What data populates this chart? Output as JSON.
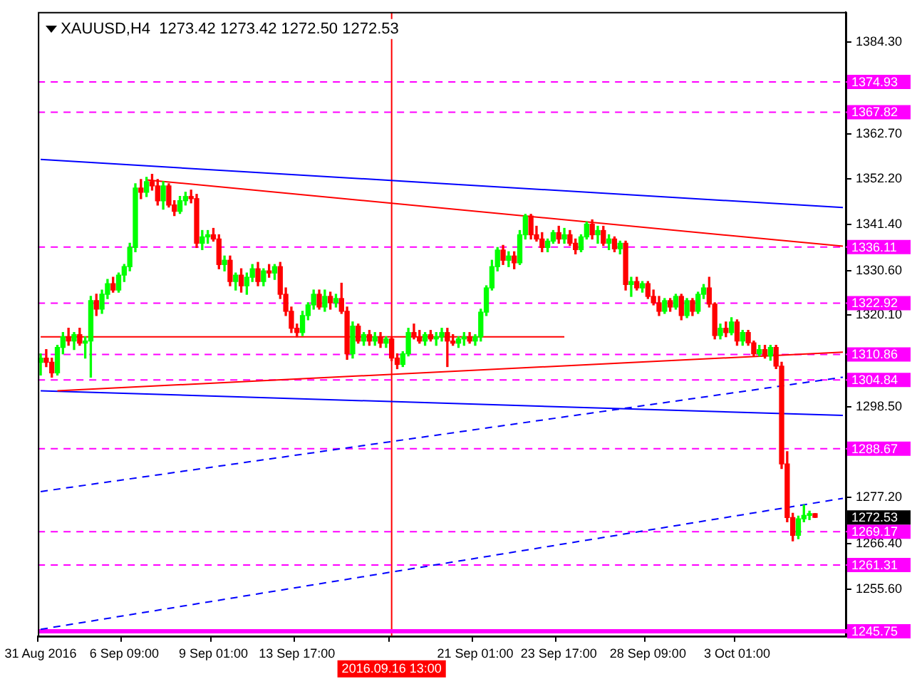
{
  "chart_data": {
    "type": "candlestick",
    "title": "XAUUSD,H4  1273.42 1273.42 1272.50 1272.53",
    "categories": [
      "31 Aug 2016",
      null,
      null,
      null,
      null,
      null,
      null,
      null,
      null,
      null,
      null,
      null,
      null,
      null,
      null,
      "6 Sep 09:00",
      null,
      null,
      null,
      null,
      null,
      null,
      null,
      null,
      null,
      null,
      null,
      null,
      null,
      null,
      null,
      "9 Sep 01:00",
      null,
      null,
      null,
      null,
      null,
      null,
      null,
      null,
      null,
      null,
      null,
      null,
      null,
      null,
      "13 Sep 17:00",
      null,
      null,
      null,
      null,
      null,
      null,
      null,
      null,
      null,
      null,
      null,
      null,
      null,
      null,
      null,
      null,
      "2016.09.16 13:00",
      null,
      null,
      null,
      null,
      null,
      null,
      null,
      null,
      null,
      null,
      null,
      null,
      null,
      null,
      "21 Sep 01:00",
      null,
      null,
      null,
      null,
      null,
      null,
      null,
      null,
      null,
      null,
      null,
      null,
      null,
      null,
      "23 Sep 17:00",
      null,
      null,
      null,
      null,
      null,
      null,
      null,
      null,
      null,
      null,
      null,
      null,
      null,
      null,
      null,
      "28 Sep 09:00",
      null,
      null,
      null,
      null,
      null,
      null,
      null,
      null,
      null,
      null,
      null,
      null,
      null,
      null,
      null,
      "3 Oct 01:00",
      null,
      null,
      null,
      null,
      null,
      null,
      null,
      null,
      null,
      null,
      null,
      null,
      null,
      null,
      null,
      null,
      null,
      null,
      null
    ],
    "ohlc": [
      [
        1309,
        1311,
        1306,
        1310
      ],
      [
        1310,
        1312,
        1308,
        1309
      ],
      [
        1309,
        1310,
        1305.5,
        1306.5
      ],
      [
        1306.5,
        1313,
        1306,
        1312.5
      ],
      [
        1312.5,
        1316,
        1311,
        1315
      ],
      [
        1315,
        1317,
        1313,
        1314
      ],
      [
        1314,
        1316,
        1312,
        1315.5
      ],
      [
        1315.5,
        1317,
        1313,
        1313.5
      ],
      [
        1313.5,
        1315,
        1310,
        1314
      ],
      [
        1314,
        1324.5,
        1305.5,
        1323.5
      ],
      [
        1323.5,
        1325,
        1320,
        1321.5
      ],
      [
        1321.5,
        1326,
        1320.5,
        1325
      ],
      [
        1325,
        1328.5,
        1324,
        1327.5
      ],
      [
        1327.5,
        1329,
        1325.5,
        1326
      ],
      [
        1326,
        1330,
        1325.5,
        1329.5
      ],
      [
        1329.5,
        1332,
        1328,
        1331.5
      ],
      [
        1331.5,
        1337,
        1330.5,
        1336
      ],
      [
        1336,
        1351,
        1335,
        1350
      ],
      [
        1350,
        1352,
        1347.5,
        1349
      ],
      [
        1349,
        1352.5,
        1348,
        1351.5
      ],
      [
        1351.5,
        1353.2,
        1349.5,
        1350.5
      ],
      [
        1350.5,
        1352,
        1346,
        1347
      ],
      [
        1347,
        1351.5,
        1345,
        1350.5
      ],
      [
        1350.5,
        1351,
        1345.5,
        1346
      ],
      [
        1346,
        1347,
        1343.5,
        1344.5
      ],
      [
        1344.5,
        1348,
        1344,
        1347
      ],
      [
        1347,
        1349,
        1346,
        1348
      ],
      [
        1348,
        1349.5,
        1346.5,
        1347.5
      ],
      [
        1347.5,
        1348.5,
        1336,
        1337
      ],
      [
        1337,
        1340,
        1335.5,
        1338.5
      ],
      [
        1338.5,
        1340,
        1337,
        1339
      ],
      [
        1339,
        1340.5,
        1337.5,
        1338
      ],
      [
        1338,
        1339,
        1331,
        1332
      ],
      [
        1332,
        1334,
        1330.5,
        1333
      ],
      [
        1333,
        1334,
        1327,
        1328
      ],
      [
        1328,
        1330,
        1326,
        1329.5
      ],
      [
        1329.5,
        1331,
        1325.5,
        1327
      ],
      [
        1327,
        1330,
        1325,
        1329
      ],
      [
        1329,
        1332,
        1328,
        1331
      ],
      [
        1331,
        1332.5,
        1327,
        1328
      ],
      [
        1328,
        1331,
        1327,
        1330.5
      ],
      [
        1330.5,
        1332,
        1329,
        1330
      ],
      [
        1330,
        1332,
        1328.5,
        1331.5
      ],
      [
        1331.5,
        1332.5,
        1324,
        1325
      ],
      [
        1325,
        1326.5,
        1320,
        1321
      ],
      [
        1321,
        1322,
        1316,
        1317
      ],
      [
        1317,
        1318,
        1315,
        1316
      ],
      [
        1316,
        1321,
        1315.3,
        1320
      ],
      [
        1320,
        1323,
        1319,
        1322.5
      ],
      [
        1322.5,
        1326,
        1321.5,
        1325
      ],
      [
        1325,
        1326,
        1321.5,
        1322
      ],
      [
        1322,
        1326,
        1321,
        1324.5
      ],
      [
        1324.5,
        1325.5,
        1321.5,
        1323
      ],
      [
        1323,
        1325,
        1322,
        1324
      ],
      [
        1324,
        1327.6,
        1320.5,
        1321
      ],
      [
        1321,
        1322,
        1309.7,
        1311
      ],
      [
        1311,
        1318.5,
        1310,
        1317.5
      ],
      [
        1317.5,
        1318,
        1313.5,
        1314
      ],
      [
        1314,
        1316,
        1313,
        1315.5
      ],
      [
        1315.5,
        1316.5,
        1313,
        1314
      ],
      [
        1314,
        1316,
        1313,
        1315
      ],
      [
        1315,
        1316,
        1312.5,
        1313.5
      ],
      [
        1313.5,
        1315,
        1312.5,
        1314.5
      ],
      [
        1314.5,
        1315,
        1309.4,
        1310
      ],
      [
        1310,
        1311,
        1307.5,
        1308.5
      ],
      [
        1308.5,
        1311.5,
        1308,
        1311
      ],
      [
        1311,
        1317,
        1310.5,
        1316
      ],
      [
        1316,
        1318,
        1314.5,
        1315
      ],
      [
        1315,
        1316.5,
        1313.5,
        1314
      ],
      [
        1314,
        1316,
        1313,
        1315.5
      ],
      [
        1315.5,
        1316.5,
        1314,
        1314.5
      ],
      [
        1314.5,
        1316,
        1313,
        1315
      ],
      [
        1315,
        1317,
        1314,
        1316
      ],
      [
        1316,
        1317,
        1308,
        1314
      ],
      [
        1314,
        1315.5,
        1313,
        1313.5
      ],
      [
        1313.5,
        1315,
        1312.5,
        1314.5
      ],
      [
        1314.5,
        1316,
        1313,
        1315
      ],
      [
        1315,
        1316,
        1313.5,
        1314
      ],
      [
        1314,
        1315.5,
        1313,
        1315
      ],
      [
        1315,
        1321.5,
        1314,
        1320.8
      ],
      [
        1320.8,
        1327,
        1320,
        1326.5
      ],
      [
        1326.5,
        1333,
        1326,
        1331.5
      ],
      [
        1331.5,
        1336,
        1330.5,
        1335.4
      ],
      [
        1335.4,
        1336.5,
        1332,
        1333
      ],
      [
        1333,
        1335,
        1331.5,
        1334
      ],
      [
        1334,
        1335,
        1331,
        1332.4
      ],
      [
        1332.4,
        1340,
        1332,
        1339
      ],
      [
        1339,
        1343.8,
        1338,
        1343.4
      ],
      [
        1343.4,
        1343.8,
        1338,
        1339
      ],
      [
        1339,
        1341,
        1337.5,
        1338
      ],
      [
        1338,
        1339.5,
        1335,
        1336
      ],
      [
        1336,
        1338,
        1335,
        1337.5
      ],
      [
        1337.5,
        1340,
        1337,
        1339.5
      ],
      [
        1339.5,
        1341,
        1337,
        1338
      ],
      [
        1338,
        1340.5,
        1337,
        1339
      ],
      [
        1339,
        1340,
        1336.5,
        1337
      ],
      [
        1337,
        1338,
        1334.5,
        1335.5
      ],
      [
        1335.5,
        1339,
        1335,
        1338.5
      ],
      [
        1338.5,
        1342,
        1338,
        1341.5
      ],
      [
        1341.5,
        1342.5,
        1338,
        1339
      ],
      [
        1339,
        1341,
        1337,
        1340
      ],
      [
        1340,
        1341,
        1336.5,
        1337
      ],
      [
        1337,
        1339,
        1335.5,
        1338
      ],
      [
        1338,
        1338.5,
        1335,
        1335.7
      ],
      [
        1335.7,
        1337.5,
        1334.5,
        1337
      ],
      [
        1337,
        1337.5,
        1326,
        1327.3
      ],
      [
        1327.3,
        1329,
        1324.5,
        1328
      ],
      [
        1328,
        1329,
        1326,
        1326.5
      ],
      [
        1326.5,
        1328,
        1325.5,
        1327.5
      ],
      [
        1327.5,
        1328,
        1324,
        1324.5
      ],
      [
        1324.5,
        1326,
        1322.5,
        1323
      ],
      [
        1323,
        1324.5,
        1320,
        1321
      ],
      [
        1321,
        1324,
        1320.5,
        1323.5
      ],
      [
        1323.5,
        1324,
        1321,
        1322
      ],
      [
        1322,
        1325,
        1321.5,
        1324.5
      ],
      [
        1324.5,
        1325,
        1319,
        1320
      ],
      [
        1320,
        1324,
        1319.5,
        1323.5
      ],
      [
        1323.5,
        1324,
        1320,
        1321
      ],
      [
        1321,
        1325.5,
        1320.5,
        1325
      ],
      [
        1325,
        1327.3,
        1324,
        1326.5
      ],
      [
        1326.5,
        1329,
        1322,
        1322.7
      ],
      [
        1322.7,
        1323,
        1314.5,
        1315.3
      ],
      [
        1315.3,
        1318,
        1314.5,
        1317
      ],
      [
        1317,
        1318.5,
        1315,
        1316
      ],
      [
        1316,
        1319.5,
        1315.5,
        1318.5
      ],
      [
        1318.5,
        1319,
        1313,
        1314
      ],
      [
        1314,
        1316.5,
        1313,
        1316
      ],
      [
        1316,
        1316.5,
        1313,
        1313.6
      ],
      [
        1313.6,
        1314,
        1310.5,
        1311
      ],
      [
        1311,
        1313,
        1310.5,
        1312
      ],
      [
        1312,
        1313,
        1310,
        1310.5
      ],
      [
        1310.5,
        1313,
        1309.5,
        1312.5
      ],
      [
        1312.5,
        1313,
        1307.5,
        1308.1
      ],
      [
        1308.1,
        1309,
        1284,
        1285.1
      ],
      [
        1285.1,
        1288,
        1271.5,
        1272.5
      ],
      [
        1272.5,
        1273.5,
        1267,
        1268.3
      ],
      [
        1268.3,
        1272.8,
        1267.5,
        1272.2
      ],
      [
        1272.2,
        1275.4,
        1271.5,
        1273
      ],
      [
        1273,
        1274,
        1272,
        1273.42
      ],
      [
        1273.42,
        1273.42,
        1272.5,
        1272.53
      ],
      null,
      null,
      null,
      null,
      null
    ],
    "colors": [
      "#00ff00",
      "#ff0000",
      "#ff0000",
      "#00ff00",
      "#00ff00",
      "#ff0000",
      "#00ff00",
      "#ff0000",
      "#00ff00",
      "#00ff00",
      "#ff0000",
      "#00ff00",
      "#00ff00",
      "#ff0000",
      "#00ff00",
      "#00ff00",
      "#00ff00",
      "#00ff00",
      "#ff0000",
      "#00ff00",
      "#ff0000",
      "#ff0000",
      "#00ff00",
      "#ff0000",
      "#ff0000",
      "#00ff00",
      "#00ff00",
      "#ff0000",
      "#ff0000",
      "#00ff00",
      "#00ff00",
      "#ff0000",
      "#ff0000",
      "#00ff00",
      "#ff0000",
      "#00ff00",
      "#ff0000",
      "#00ff00",
      "#00ff00",
      "#ff0000",
      "#00ff00",
      "#ff0000",
      "#00ff00",
      "#ff0000",
      "#ff0000",
      "#ff0000",
      "#ff0000",
      "#00ff00",
      "#00ff00",
      "#00ff00",
      "#ff0000",
      "#00ff00",
      "#ff0000",
      "#00ff00",
      "#ff0000",
      "#ff0000",
      "#00ff00",
      "#ff0000",
      "#00ff00",
      "#ff0000",
      "#00ff00",
      "#ff0000",
      "#00ff00",
      "#ff0000",
      "#ff0000",
      "#00ff00",
      "#00ff00",
      "#ff0000",
      "#ff0000",
      "#00ff00",
      "#ff0000",
      "#00ff00",
      "#00ff00",
      "#ff0000",
      "#ff0000",
      "#00ff00",
      "#00ff00",
      "#ff0000",
      "#00ff00",
      "#00ff00",
      "#00ff00",
      "#00ff00",
      "#00ff00",
      "#ff0000",
      "#00ff00",
      "#ff0000",
      "#00ff00",
      "#00ff00",
      "#ff0000",
      "#ff0000",
      "#ff0000",
      "#00ff00",
      "#00ff00",
      "#ff0000",
      "#00ff00",
      "#ff0000",
      "#ff0000",
      "#00ff00",
      "#00ff00",
      "#ff0000",
      "#00ff00",
      "#ff0000",
      "#00ff00",
      "#ff0000",
      "#00ff00",
      "#ff0000",
      "#00ff00",
      "#ff0000",
      "#00ff00",
      "#ff0000",
      "#ff0000",
      "#ff0000",
      "#00ff00",
      "#ff0000",
      "#00ff00",
      "#ff0000",
      "#00ff00",
      "#ff0000",
      "#00ff00",
      "#00ff00",
      "#ff0000",
      "#ff0000",
      "#00ff00",
      "#ff0000",
      "#00ff00",
      "#ff0000",
      "#00ff00",
      "#ff0000",
      "#ff0000",
      "#00ff00",
      "#ff0000",
      "#00ff00",
      "#ff0000",
      "#ff0000",
      "#ff0000",
      "#ff0000",
      "#00ff00",
      "#00ff00",
      "#00ff00",
      "#ff0000",
      null,
      null,
      null,
      null,
      null
    ],
    "series": [
      {
        "type": "line",
        "color": "#0000ff",
        "values": [
          1356.7,
          null,
          null,
          null,
          null,
          null,
          null,
          null,
          null,
          null,
          null,
          null,
          null,
          null,
          null,
          null,
          null,
          null,
          null,
          null,
          null,
          null,
          null,
          null,
          null,
          null,
          null,
          null,
          null,
          null,
          null,
          null,
          null,
          null,
          null,
          null,
          null,
          null,
          null,
          null,
          null,
          null,
          null,
          null,
          null,
          null,
          null,
          null,
          null,
          null,
          null,
          null,
          null,
          null,
          null,
          null,
          null,
          null,
          null,
          null,
          null,
          null,
          null,
          null,
          null,
          null,
          null,
          null,
          null,
          null,
          null,
          null,
          null,
          null,
          null,
          null,
          null,
          null,
          null,
          null,
          null,
          null,
          null,
          null,
          null,
          null,
          null,
          null,
          null,
          null,
          null,
          null,
          null,
          null,
          null,
          null,
          null,
          null,
          null,
          null,
          null,
          null,
          null,
          null,
          null,
          null,
          null,
          null,
          null,
          null,
          null,
          null,
          null,
          null,
          null,
          null,
          null,
          null,
          null,
          null,
          null,
          null,
          null,
          null,
          null,
          null,
          null,
          null,
          null,
          null,
          null,
          null,
          null,
          null,
          null,
          null,
          null,
          null,
          null,
          null,
          null,
          null,
          null,
          null,
          1345.4
        ]
      },
      {
        "type": "line",
        "color": "#ff0000",
        "values": [
          null,
          null,
          null,
          null,
          null,
          null,
          null,
          null,
          null,
          null,
          null,
          null,
          null,
          null,
          null,
          null,
          null,
          null,
          null,
          1351.9,
          null,
          null,
          null,
          null,
          null,
          null,
          null,
          null,
          null,
          null,
          null,
          null,
          null,
          null,
          null,
          null,
          null,
          null,
          null,
          null,
          null,
          null,
          null,
          null,
          null,
          null,
          null,
          null,
          null,
          null,
          null,
          null,
          null,
          null,
          null,
          null,
          null,
          null,
          null,
          null,
          null,
          null,
          null,
          null,
          null,
          null,
          null,
          null,
          null,
          null,
          null,
          null,
          null,
          null,
          null,
          null,
          null,
          null,
          null,
          null,
          null,
          null,
          null,
          null,
          null,
          null,
          null,
          null,
          null,
          null,
          null,
          null,
          null,
          null,
          null,
          null,
          null,
          null,
          null,
          null,
          null,
          null,
          null,
          null,
          null,
          null,
          null,
          null,
          null,
          null,
          null,
          null,
          null,
          null,
          null,
          null,
          null,
          null,
          null,
          null,
          null,
          null,
          null,
          null,
          null,
          null,
          null,
          null,
          null,
          null,
          null,
          null,
          null,
          null,
          null,
          null,
          null,
          null,
          null,
          null,
          null,
          null,
          null,
          null,
          1336.3
        ]
      },
      {
        "type": "line",
        "color": "#ff0000",
        "values": [
          null,
          null,
          null,
          1302.3,
          null,
          null,
          null,
          null,
          null,
          null,
          null,
          null,
          null,
          null,
          null,
          null,
          null,
          null,
          null,
          null,
          null,
          null,
          null,
          null,
          null,
          null,
          null,
          null,
          null,
          null,
          null,
          null,
          null,
          null,
          null,
          null,
          null,
          null,
          null,
          null,
          null,
          null,
          null,
          null,
          null,
          null,
          null,
          null,
          null,
          null,
          null,
          null,
          null,
          null,
          null,
          null,
          null,
          null,
          null,
          null,
          null,
          null,
          null,
          null,
          null,
          null,
          null,
          null,
          null,
          null,
          null,
          null,
          null,
          null,
          null,
          null,
          null,
          null,
          null,
          null,
          null,
          null,
          null,
          null,
          null,
          null,
          null,
          null,
          null,
          null,
          null,
          null,
          null,
          null,
          null,
          null,
          null,
          null,
          null,
          null,
          null,
          null,
          null,
          null,
          null,
          null,
          null,
          null,
          null,
          null,
          null,
          null,
          null,
          null,
          null,
          null,
          null,
          null,
          null,
          null,
          null,
          null,
          null,
          null,
          null,
          null,
          null,
          null,
          null,
          null,
          null,
          null,
          null,
          null,
          null,
          null,
          null,
          null,
          null,
          null,
          null,
          null,
          null,
          null,
          1311.4
        ]
      },
      {
        "type": "line",
        "color": "#0000ff",
        "values": [
          1302.3,
          null,
          null,
          null,
          null,
          null,
          null,
          null,
          null,
          null,
          null,
          null,
          null,
          null,
          null,
          null,
          null,
          null,
          null,
          null,
          null,
          null,
          null,
          null,
          null,
          null,
          null,
          null,
          null,
          null,
          null,
          null,
          null,
          null,
          null,
          null,
          null,
          null,
          null,
          null,
          null,
          null,
          null,
          null,
          null,
          null,
          null,
          null,
          null,
          null,
          null,
          null,
          null,
          null,
          null,
          null,
          null,
          null,
          null,
          null,
          null,
          null,
          null,
          null,
          null,
          null,
          null,
          null,
          null,
          null,
          null,
          null,
          null,
          null,
          null,
          null,
          null,
          null,
          null,
          null,
          null,
          null,
          null,
          null,
          null,
          null,
          null,
          null,
          null,
          null,
          null,
          null,
          null,
          null,
          null,
          null,
          null,
          null,
          null,
          null,
          null,
          null,
          null,
          null,
          null,
          null,
          null,
          null,
          null,
          null,
          null,
          null,
          null,
          null,
          null,
          null,
          null,
          null,
          null,
          null,
          null,
          null,
          null,
          null,
          null,
          null,
          null,
          null,
          null,
          null,
          null,
          null,
          null,
          null,
          null,
          null,
          null,
          null,
          null,
          null,
          null,
          null,
          null,
          null,
          1296.5
        ]
      },
      {
        "type": "line",
        "color": "#ff0000",
        "values": [
          1315,
          null,
          null,
          null,
          null,
          null,
          null,
          null,
          null,
          null,
          null,
          null,
          null,
          null,
          null,
          null,
          null,
          null,
          null,
          null,
          null,
          null,
          null,
          null,
          null,
          null,
          null,
          null,
          null,
          null,
          null,
          null,
          null,
          null,
          null,
          null,
          null,
          null,
          null,
          null,
          null,
          null,
          null,
          null,
          null,
          null,
          null,
          null,
          null,
          null,
          null,
          null,
          null,
          null,
          null,
          null,
          null,
          null,
          null,
          null,
          null,
          null,
          null,
          null,
          null,
          null,
          null,
          null,
          null,
          null,
          null,
          null,
          null,
          null,
          null,
          null,
          null,
          null,
          null,
          null,
          null,
          null,
          null,
          null,
          null,
          null,
          null,
          null,
          null,
          null,
          null,
          null,
          null,
          null,
          1315,
          null,
          null,
          null,
          null,
          null,
          null,
          null,
          null,
          null,
          null,
          null,
          null,
          null,
          null,
          null,
          null,
          null,
          null,
          null,
          null,
          null,
          null,
          null,
          null,
          null,
          null,
          null,
          null,
          null,
          null,
          null,
          null,
          null,
          null,
          null,
          null,
          null,
          null,
          null,
          null,
          null,
          null,
          null,
          null,
          null,
          null,
          null,
          null,
          null,
          null
        ]
      },
      {
        "type": "line",
        "color": "#0000ff",
        "line_style": "dashed",
        "values": [
          1278.6,
          null,
          null,
          null,
          null,
          null,
          null,
          null,
          null,
          null,
          null,
          null,
          null,
          null,
          null,
          null,
          null,
          null,
          null,
          null,
          null,
          null,
          null,
          null,
          null,
          null,
          null,
          null,
          null,
          null,
          null,
          null,
          null,
          null,
          null,
          null,
          null,
          null,
          null,
          null,
          null,
          null,
          null,
          null,
          null,
          null,
          null,
          null,
          null,
          null,
          null,
          null,
          null,
          null,
          null,
          null,
          null,
          null,
          null,
          null,
          null,
          null,
          null,
          null,
          null,
          null,
          null,
          null,
          null,
          null,
          null,
          null,
          null,
          null,
          null,
          null,
          null,
          null,
          null,
          null,
          null,
          null,
          null,
          null,
          null,
          null,
          null,
          null,
          null,
          null,
          null,
          null,
          null,
          null,
          null,
          null,
          null,
          null,
          null,
          null,
          null,
          null,
          null,
          null,
          null,
          null,
          null,
          null,
          null,
          null,
          null,
          null,
          null,
          null,
          null,
          null,
          null,
          null,
          null,
          null,
          null,
          null,
          null,
          null,
          null,
          null,
          null,
          null,
          null,
          null,
          null,
          null,
          null,
          null,
          null,
          null,
          null,
          null,
          null,
          null,
          null,
          null,
          null,
          null,
          1305.5
        ]
      },
      {
        "type": "line",
        "color": "#0000ff",
        "line_style": "dashed",
        "values": [
          1246.2,
          null,
          null,
          null,
          null,
          null,
          null,
          null,
          null,
          null,
          null,
          null,
          null,
          null,
          null,
          null,
          null,
          null,
          null,
          null,
          null,
          null,
          null,
          null,
          null,
          null,
          null,
          null,
          null,
          null,
          null,
          null,
          null,
          null,
          null,
          null,
          null,
          null,
          null,
          null,
          null,
          null,
          null,
          null,
          null,
          null,
          null,
          null,
          null,
          null,
          null,
          null,
          null,
          null,
          null,
          null,
          null,
          null,
          null,
          null,
          null,
          null,
          null,
          null,
          null,
          null,
          null,
          null,
          null,
          null,
          null,
          null,
          null,
          null,
          null,
          null,
          null,
          null,
          null,
          null,
          null,
          null,
          null,
          null,
          null,
          null,
          null,
          null,
          null,
          null,
          null,
          null,
          null,
          null,
          null,
          null,
          null,
          null,
          null,
          null,
          null,
          null,
          null,
          null,
          null,
          null,
          null,
          null,
          null,
          null,
          null,
          null,
          null,
          null,
          null,
          null,
          null,
          null,
          null,
          null,
          null,
          null,
          null,
          null,
          null,
          null,
          null,
          null,
          null,
          null,
          null,
          null,
          null,
          null,
          null,
          null,
          null,
          null,
          null,
          null,
          null,
          null,
          null,
          null,
          1277
        ]
      }
    ],
    "ylim": [
      1244.6,
      1391.4
    ],
    "yticks": [
      {
        "value": 1384.3,
        "label": "1384.30"
      },
      {
        "value": 1362.7,
        "label": "1362.70"
      },
      {
        "value": 1352.2,
        "label": "1352.20"
      },
      {
        "value": 1341.4,
        "label": "1341.40"
      },
      {
        "value": 1330.6,
        "label": "1330.60"
      },
      {
        "value": 1320.1,
        "label": "1320.10"
      },
      {
        "value": 1298.5,
        "label": "1298.50"
      },
      {
        "value": 1277.2,
        "label": "1277.20"
      },
      {
        "value": 1266.4,
        "label": "1266.40"
      },
      {
        "value": 1255.6,
        "label": "1255.60"
      }
    ],
    "ref_lines": [
      {
        "axis": "x",
        "value": "2016.09.16 13:00",
        "color": "#ff0000",
        "line_style": "solid"
      },
      {
        "axis": "y",
        "value": 1374.93,
        "label": "1374.93",
        "color": "#ff00ff",
        "line_style": "dashed"
      },
      {
        "axis": "y",
        "value": 1367.82,
        "label": "1367.82",
        "color": "#ff00ff",
        "line_style": "dashed"
      },
      {
        "axis": "y",
        "value": 1336.11,
        "label": "1336.11",
        "color": "#ff00ff",
        "line_style": "dashed"
      },
      {
        "axis": "y",
        "value": 1322.92,
        "label": "1322.92",
        "color": "#ff00ff",
        "line_style": "dashed"
      },
      {
        "axis": "y",
        "value": 1310.86,
        "label": "1310.86",
        "color": "#ff00ff",
        "line_style": "dashed"
      },
      {
        "axis": "y",
        "value": 1304.84,
        "label": "1304.84",
        "color": "#ff00ff",
        "line_style": "dashed"
      },
      {
        "axis": "y",
        "value": 1288.67,
        "label": "1288.67",
        "color": "#ff00ff",
        "line_style": "dashed"
      },
      {
        "axis": "y",
        "value": 1269.17,
        "label": "1269.17",
        "color": "#ff00ff",
        "line_style": "dashed"
      },
      {
        "axis": "y",
        "value": 1261.31,
        "label": "1261.31",
        "color": "#ff00ff",
        "line_style": "dashed"
      },
      {
        "axis": "y",
        "value": 1245.75,
        "label": "1245.75",
        "color": "#ff00ff",
        "line_style": "solid"
      }
    ],
    "annotations": [
      "1272.53"
    ],
    "grid": false,
    "legend": false,
    "marker": "none"
  }
}
